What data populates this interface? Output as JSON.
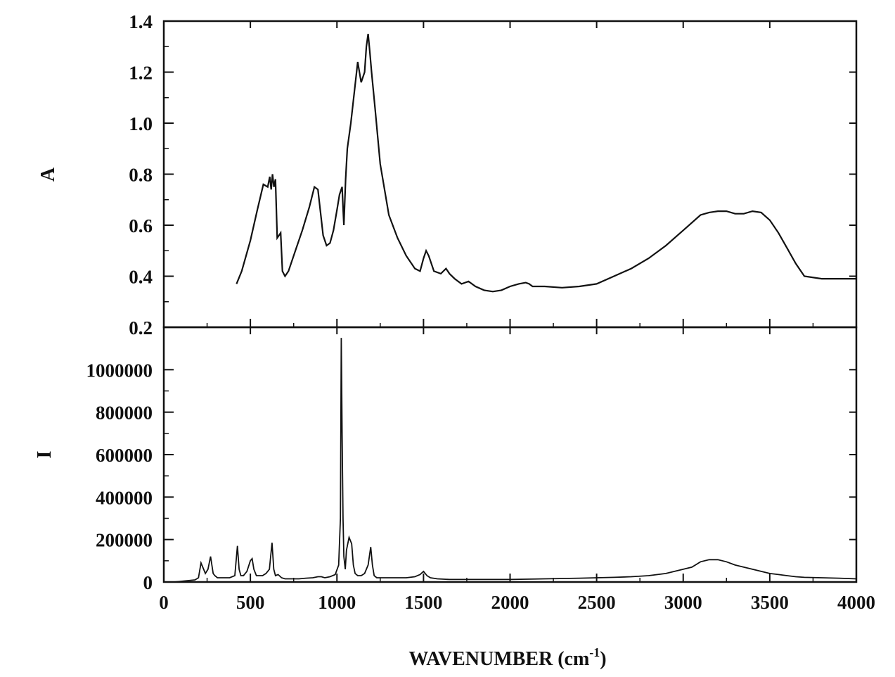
{
  "chart_data": [
    {
      "type": "line",
      "panel": "top",
      "title": "",
      "xlabel": "WAVENUMBER (cm",
      "xlabel_superscript": "-1",
      "xlabel_suffix": ")",
      "ylabel": "A",
      "xlim": [
        0,
        4000
      ],
      "ylim": [
        0.2,
        1.4
      ],
      "x_ticks": [
        0,
        500,
        1000,
        1500,
        2000,
        2500,
        3000,
        3500,
        4000
      ],
      "x_tick_labels": [
        "0",
        "500",
        "1000",
        "1500",
        "2000",
        "2500",
        "3000",
        "3500",
        "4000"
      ],
      "y_ticks": [
        0.2,
        0.4,
        0.6,
        0.8,
        1.0,
        1.2,
        1.4
      ],
      "y_tick_labels": [
        "0.2",
        "0.4",
        "0.6",
        "0.8",
        "1.0",
        "1.2",
        "1.4"
      ],
      "grid": false,
      "series": [
        {
          "x": [
            420,
            450,
            500,
            540,
            575,
            600,
            612,
            620,
            628,
            636,
            645,
            655,
            665,
            675,
            685,
            700,
            720,
            760,
            800,
            840,
            870,
            890,
            905,
            920,
            940,
            960,
            980,
            1000,
            1015,
            1030,
            1040,
            1050,
            1060,
            1080,
            1100,
            1120,
            1140,
            1160,
            1170,
            1180,
            1190,
            1200,
            1220,
            1250,
            1300,
            1350,
            1400,
            1450,
            1480,
            1500,
            1515,
            1530,
            1560,
            1600,
            1630,
            1650,
            1680,
            1720,
            1760,
            1800,
            1850,
            1900,
            1950,
            2000,
            2050,
            2090,
            2110,
            2130,
            2200,
            2300,
            2400,
            2500,
            2600,
            2700,
            2800,
            2900,
            3000,
            3100,
            3150,
            3200,
            3250,
            3300,
            3350,
            3400,
            3450,
            3500,
            3550,
            3600,
            3650,
            3700,
            3800,
            3900,
            4000
          ],
          "values": [
            0.37,
            0.42,
            0.54,
            0.66,
            0.76,
            0.75,
            0.79,
            0.74,
            0.8,
            0.75,
            0.78,
            0.55,
            0.56,
            0.57,
            0.42,
            0.4,
            0.42,
            0.5,
            0.58,
            0.67,
            0.75,
            0.74,
            0.65,
            0.56,
            0.52,
            0.53,
            0.58,
            0.66,
            0.72,
            0.75,
            0.6,
            0.78,
            0.9,
            1.0,
            1.12,
            1.24,
            1.16,
            1.2,
            1.3,
            1.35,
            1.28,
            1.2,
            1.06,
            0.84,
            0.64,
            0.55,
            0.48,
            0.43,
            0.42,
            0.47,
            0.5,
            0.48,
            0.42,
            0.41,
            0.43,
            0.41,
            0.39,
            0.37,
            0.38,
            0.36,
            0.345,
            0.34,
            0.345,
            0.36,
            0.37,
            0.375,
            0.37,
            0.36,
            0.36,
            0.355,
            0.36,
            0.37,
            0.4,
            0.43,
            0.47,
            0.52,
            0.58,
            0.64,
            0.65,
            0.655,
            0.655,
            0.645,
            0.645,
            0.655,
            0.65,
            0.62,
            0.57,
            0.51,
            0.45,
            0.4,
            0.39,
            0.39,
            0.39
          ]
        }
      ]
    },
    {
      "type": "line",
      "panel": "bottom",
      "title": "",
      "xlabel": "WAVENUMBER (cm",
      "ylabel": "I",
      "xlim": [
        0,
        4000
      ],
      "ylim": [
        0,
        1200000
      ],
      "x_ticks": [
        0,
        500,
        1000,
        1500,
        2000,
        2500,
        3000,
        3500,
        4000
      ],
      "x_tick_labels": [
        "0",
        "500",
        "1000",
        "1500",
        "2000",
        "2500",
        "3000",
        "3500",
        "4000"
      ],
      "y_ticks": [
        0,
        200000,
        400000,
        600000,
        800000,
        1000000
      ],
      "y_tick_labels": [
        "0",
        "200000",
        "400000",
        "600000",
        "800000",
        "1000000"
      ],
      "grid": false,
      "series": [
        {
          "x": [
            60,
            120,
            180,
            200,
            215,
            225,
            240,
            255,
            270,
            285,
            295,
            310,
            340,
            380,
            410,
            425,
            435,
            445,
            460,
            480,
            500,
            510,
            520,
            535,
            550,
            570,
            590,
            610,
            625,
            635,
            645,
            660,
            680,
            700,
            740,
            780,
            820,
            860,
            890,
            910,
            930,
            960,
            990,
            1010,
            1020,
            1025,
            1030,
            1035,
            1040,
            1048,
            1055,
            1070,
            1085,
            1095,
            1105,
            1120,
            1140,
            1160,
            1180,
            1195,
            1205,
            1215,
            1230,
            1260,
            1300,
            1350,
            1400,
            1450,
            1480,
            1500,
            1520,
            1540,
            1580,
            1650,
            1750,
            1850,
            2000,
            2200,
            2400,
            2600,
            2700,
            2800,
            2900,
            2950,
            3000,
            3050,
            3100,
            3150,
            3200,
            3250,
            3300,
            3350,
            3400,
            3450,
            3500,
            3550,
            3600,
            3650,
            3700,
            3800,
            3900,
            4000
          ],
          "values": [
            0,
            5000,
            10000,
            20000,
            90000,
            70000,
            40000,
            60000,
            120000,
            40000,
            30000,
            20000,
            20000,
            20000,
            30000,
            170000,
            60000,
            30000,
            30000,
            50000,
            100000,
            110000,
            60000,
            30000,
            30000,
            30000,
            40000,
            60000,
            185000,
            60000,
            30000,
            35000,
            20000,
            15000,
            15000,
            15000,
            18000,
            20000,
            25000,
            25000,
            20000,
            25000,
            35000,
            80000,
            300000,
            1150000,
            700000,
            300000,
            120000,
            60000,
            150000,
            210000,
            180000,
            80000,
            40000,
            30000,
            30000,
            40000,
            80000,
            165000,
            80000,
            30000,
            20000,
            20000,
            20000,
            20000,
            20000,
            25000,
            35000,
            50000,
            30000,
            20000,
            15000,
            12000,
            12000,
            12000,
            12000,
            15000,
            18000,
            22000,
            25000,
            30000,
            40000,
            50000,
            60000,
            70000,
            95000,
            105000,
            105000,
            95000,
            80000,
            70000,
            60000,
            50000,
            40000,
            35000,
            30000,
            25000,
            22000,
            20000,
            18000,
            15000
          ]
        }
      ]
    }
  ]
}
